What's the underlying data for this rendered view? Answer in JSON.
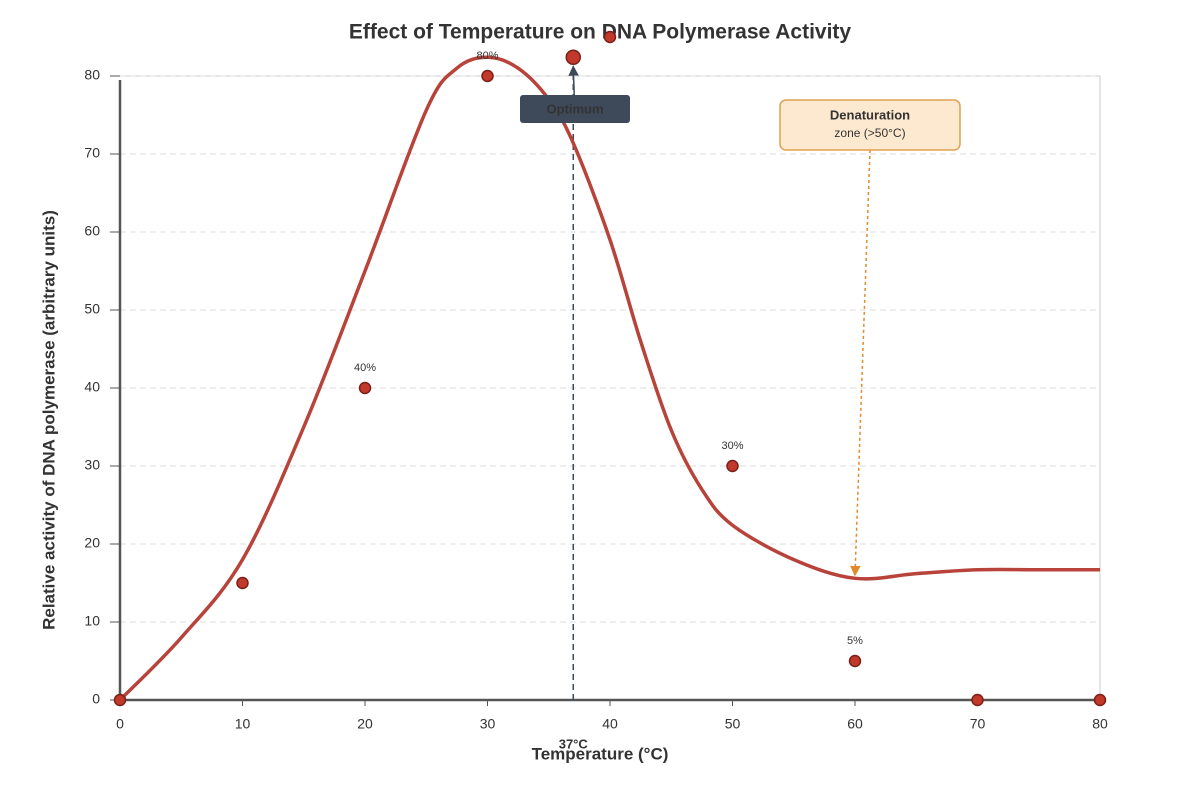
{
  "chart_data": {
    "type": "scatter",
    "title": "Effect of Temperature on DNA Polymerase Activity",
    "x_label": "Temperature (°C)",
    "y_label": "Relative activity of DNA polymerase (arbitrary units)",
    "xlim": [
      0,
      80
    ],
    "xticks": [
      0,
      10,
      20,
      30,
      40,
      50,
      60,
      70,
      80
    ],
    "ylim": [
      0,
      80
    ],
    "yticks": [
      0,
      10,
      20,
      30,
      40,
      50,
      60,
      70,
      80
    ],
    "grid": true,
    "points": {
      "color": "#c0392b",
      "x": [
        0,
        10,
        20,
        30,
        37,
        40,
        50,
        60,
        70,
        80
      ],
      "values": [
        0,
        15,
        40,
        80,
        82.4,
        85,
        30,
        5,
        0,
        0
      ],
      "value_labels": [
        null,
        null,
        "40%",
        "80%",
        null,
        null,
        "30%",
        "5%",
        null,
        null
      ]
    },
    "curve": {
      "color": "#b8433a",
      "x": [
        0,
        5,
        10,
        15,
        20,
        25,
        27.5,
        30,
        32.5,
        35,
        37,
        40,
        42.5,
        45,
        47.5,
        50,
        55,
        60,
        65,
        70,
        75,
        80
      ],
      "values": [
        0,
        8,
        18,
        35,
        55,
        75.6,
        81,
        82.4,
        81,
        77,
        71.4,
        59,
        46,
        34.6,
        27,
        22.4,
        18,
        15.6,
        16.2,
        16.7,
        16.7,
        16.7
      ]
    },
    "optimum": {
      "text": "Optimum",
      "x": 37,
      "label": "37°C"
    },
    "denaturation": {
      "title": "Denaturation",
      "text": "zone (>50°C)",
      "x": 60,
      "y": 15.6
    }
  }
}
